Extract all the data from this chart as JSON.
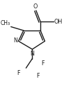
{
  "bg_color": "#ffffff",
  "line_color": "#1a1a1a",
  "text_color": "#1a1a1a",
  "line_width": 1.0,
  "font_size": 5.8,
  "figsize": [
    0.92,
    1.24
  ],
  "dpi": 100,
  "xlim": [
    0,
    92
  ],
  "ylim": [
    0,
    124
  ]
}
